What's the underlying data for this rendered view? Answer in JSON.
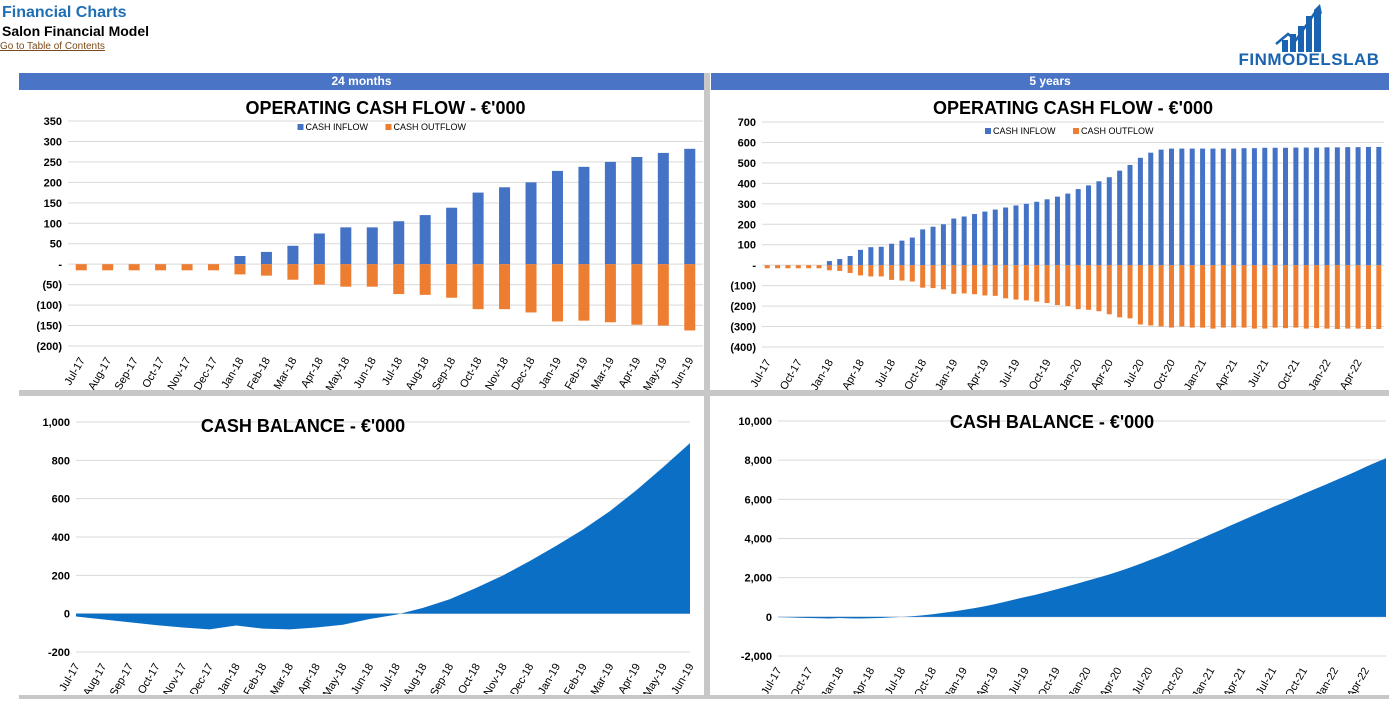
{
  "header": {
    "title": "Financial Charts",
    "subtitle": "Salon Financial Model",
    "link": "Go to Table of Contents"
  },
  "logo": {
    "text": "FINMODELSLAB",
    "icon": "bar-chart-arrow-icon",
    "color": "#1a63b0"
  },
  "sections": {
    "left": "24 months",
    "right": "5 years"
  },
  "colors": {
    "band": "#4a74c6",
    "inflow": "#4472c4",
    "outflow": "#ed7d31",
    "area": "#0b6fc6",
    "grid": "#d9d9d9",
    "separator": "#c7c7c7"
  },
  "chart_data": [
    {
      "id": "ocf24",
      "type": "bar",
      "title": "OPERATING CASH FLOW - €'000",
      "categories": [
        "Jul-17",
        "Aug-17",
        "Sep-17",
        "Oct-17",
        "Nov-17",
        "Dec-17",
        "Jan-18",
        "Feb-18",
        "Mar-18",
        "Apr-18",
        "May-18",
        "Jun-18",
        "Jul-18",
        "Aug-18",
        "Sep-18",
        "Oct-18",
        "Nov-18",
        "Dec-18",
        "Jan-19",
        "Feb-19",
        "Mar-19",
        "Apr-19",
        "May-19",
        "Jun-19"
      ],
      "series": [
        {
          "name": "CASH INFLOW",
          "values": [
            0,
            0,
            0,
            0,
            0,
            0,
            20,
            30,
            45,
            75,
            90,
            90,
            105,
            120,
            138,
            175,
            188,
            200,
            228,
            238,
            250,
            262,
            272,
            282
          ]
        },
        {
          "name": "CASH OUTFLOW",
          "values": [
            -15,
            -15,
            -15,
            -15,
            -15,
            -15,
            -25,
            -28,
            -38,
            -50,
            -55,
            -55,
            -73,
            -75,
            -82,
            -110,
            -110,
            -118,
            -140,
            -138,
            -142,
            -148,
            -150,
            -162
          ]
        }
      ],
      "ylim": [
        -200,
        350
      ],
      "yticks": [
        -200,
        -150,
        -100,
        -50,
        0,
        50,
        100,
        150,
        200,
        250,
        300,
        350
      ],
      "ytick_labels": [
        "(200)",
        "(150)",
        "(100)",
        "(50)",
        "-",
        "50",
        "100",
        "150",
        "200",
        "250",
        "300",
        "350"
      ],
      "legend": "top-center",
      "grid": true
    },
    {
      "id": "ocf60",
      "type": "bar",
      "title": "OPERATING CASH FLOW - €'000",
      "categories": [
        "Jul-17",
        "Aug-17",
        "Sep-17",
        "Oct-17",
        "Nov-17",
        "Dec-17",
        "Jan-18",
        "Feb-18",
        "Mar-18",
        "Apr-18",
        "May-18",
        "Jun-18",
        "Jul-18",
        "Aug-18",
        "Sep-18",
        "Oct-18",
        "Nov-18",
        "Dec-18",
        "Jan-19",
        "Feb-19",
        "Mar-19",
        "Apr-19",
        "May-19",
        "Jun-19",
        "Jul-19",
        "Aug-19",
        "Sep-19",
        "Oct-19",
        "Nov-19",
        "Dec-19",
        "Jan-20",
        "Feb-20",
        "Mar-20",
        "Apr-20",
        "May-20",
        "Jun-20",
        "Jul-20",
        "Aug-20",
        "Sep-20",
        "Oct-20",
        "Nov-20",
        "Dec-20",
        "Jan-21",
        "Feb-21",
        "Mar-21",
        "Apr-21",
        "May-21",
        "Jun-21",
        "Jul-21",
        "Aug-21",
        "Sep-21",
        "Oct-21",
        "Nov-21",
        "Dec-21",
        "Jan-22",
        "Feb-22",
        "Mar-22",
        "Apr-22",
        "May-22",
        "Jun-22"
      ],
      "tick_labels": [
        "Jul-17",
        "",
        "",
        "Oct-17",
        "",
        "",
        "Jan-18",
        "",
        "",
        "Apr-18",
        "",
        "",
        "Jul-18",
        "",
        "",
        "Oct-18",
        "",
        "",
        "Jan-19",
        "",
        "",
        "Apr-19",
        "",
        "",
        "Jul-19",
        "",
        "",
        "Oct-19",
        "",
        "",
        "Jan-20",
        "",
        "",
        "Apr-20",
        "",
        "",
        "Jul-20",
        "",
        "",
        "Oct-20",
        "",
        "",
        "Jan-21",
        "",
        "",
        "Apr-21",
        "",
        "",
        "Jul-21",
        "",
        "",
        "Oct-21",
        "",
        "",
        "Jan-22",
        "",
        "",
        "Apr-22",
        "",
        ""
      ],
      "series": [
        {
          "name": "CASH INFLOW",
          "values": [
            0,
            0,
            0,
            0,
            0,
            0,
            20,
            30,
            45,
            75,
            88,
            90,
            105,
            120,
            135,
            175,
            188,
            200,
            228,
            238,
            250,
            262,
            272,
            282,
            292,
            300,
            310,
            322,
            335,
            350,
            372,
            390,
            410,
            430,
            462,
            490,
            525,
            550,
            565,
            570,
            570,
            570,
            570,
            570,
            570,
            570,
            572,
            572,
            574,
            574,
            574,
            575,
            575,
            575,
            576,
            576,
            577,
            577,
            578,
            578
          ]
        },
        {
          "name": "CASH OUTFLOW",
          "values": [
            -15,
            -15,
            -15,
            -15,
            -15,
            -15,
            -25,
            -28,
            -38,
            -50,
            -55,
            -55,
            -72,
            -75,
            -80,
            -110,
            -112,
            -118,
            -140,
            -138,
            -142,
            -148,
            -150,
            -162,
            -168,
            -172,
            -178,
            -185,
            -195,
            -200,
            -215,
            -218,
            -225,
            -240,
            -255,
            -260,
            -290,
            -295,
            -300,
            -305,
            -300,
            -305,
            -305,
            -310,
            -305,
            -305,
            -305,
            -310,
            -310,
            -305,
            -308,
            -305,
            -310,
            -308,
            -310,
            -312,
            -310,
            -310,
            -312,
            -312
          ]
        }
      ],
      "ylim": [
        -400,
        700
      ],
      "yticks": [
        -400,
        -300,
        -200,
        -100,
        0,
        100,
        200,
        300,
        400,
        500,
        600,
        700
      ],
      "ytick_labels": [
        "(400)",
        "(300)",
        "(200)",
        "(100)",
        "-",
        "100",
        "200",
        "300",
        "400",
        "500",
        "600",
        "700"
      ],
      "legend": "top-center",
      "grid": true
    },
    {
      "id": "cb24",
      "type": "area",
      "title": "CASH BALANCE - €'000",
      "categories": [
        "Jul-17",
        "Aug-17",
        "Sep-17",
        "Oct-17",
        "Nov-17",
        "Dec-17",
        "Jan-18",
        "Feb-18",
        "Mar-18",
        "Apr-18",
        "May-18",
        "Jun-18",
        "Jul-18",
        "Aug-18",
        "Sep-18",
        "Oct-18",
        "Nov-18",
        "Dec-18",
        "Jan-19",
        "Feb-19",
        "Mar-19",
        "Apr-19",
        "May-19",
        "Jun-19"
      ],
      "values": [
        -15,
        -30,
        -45,
        -60,
        -72,
        -82,
        -62,
        -78,
        -82,
        -72,
        -58,
        -28,
        -5,
        30,
        75,
        135,
        200,
        275,
        355,
        440,
        535,
        645,
        765,
        890
      ],
      "ylim": [
        -200,
        1000
      ],
      "yticks": [
        -200,
        0,
        200,
        400,
        600,
        800,
        1000
      ],
      "ytick_labels": [
        "-200",
        "0",
        "200",
        "400",
        "600",
        "800",
        "1,000"
      ],
      "grid": true
    },
    {
      "id": "cb60",
      "type": "area",
      "title": "CASH BALANCE - €'000",
      "categories": [
        "Jul-17",
        "Aug-17",
        "Sep-17",
        "Oct-17",
        "Nov-17",
        "Dec-17",
        "Jan-18",
        "Feb-18",
        "Mar-18",
        "Apr-18",
        "May-18",
        "Jun-18",
        "Jul-18",
        "Aug-18",
        "Sep-18",
        "Oct-18",
        "Nov-18",
        "Dec-18",
        "Jan-19",
        "Feb-19",
        "Mar-19",
        "Apr-19",
        "May-19",
        "Jun-19",
        "Jul-19",
        "Aug-19",
        "Sep-19",
        "Oct-19",
        "Nov-19",
        "Dec-19",
        "Jan-20",
        "Feb-20",
        "Mar-20",
        "Apr-20",
        "May-20",
        "Jun-20",
        "Jul-20",
        "Aug-20",
        "Sep-20",
        "Oct-20",
        "Nov-20",
        "Dec-20",
        "Jan-21",
        "Feb-21",
        "Mar-21",
        "Apr-21",
        "May-21",
        "Jun-21",
        "Jul-21",
        "Aug-21",
        "Sep-21",
        "Oct-21",
        "Nov-21",
        "Dec-21",
        "Jan-22",
        "Feb-22",
        "Mar-22",
        "Apr-22",
        "May-22",
        "Jun-22"
      ],
      "tick_labels": [
        "Jul-17",
        "",
        "",
        "Oct-17",
        "",
        "",
        "Jan-18",
        "",
        "",
        "Apr-18",
        "",
        "",
        "Jul-18",
        "",
        "",
        "Oct-18",
        "",
        "",
        "Jan-19",
        "",
        "",
        "Apr-19",
        "",
        "",
        "Jul-19",
        "",
        "",
        "Oct-19",
        "",
        "",
        "Jan-20",
        "",
        "",
        "Apr-20",
        "",
        "",
        "Jul-20",
        "",
        "",
        "Oct-20",
        "",
        "",
        "Jan-21",
        "",
        "",
        "Apr-21",
        "",
        "",
        "Jul-21",
        "",
        "",
        "Oct-21",
        "",
        "",
        "Jan-22",
        "",
        "",
        "Apr-22",
        "",
        ""
      ],
      "values": [
        -15,
        -30,
        -45,
        -60,
        -72,
        -82,
        -62,
        -78,
        -82,
        -72,
        -58,
        -28,
        -5,
        30,
        75,
        135,
        200,
        275,
        355,
        440,
        535,
        645,
        765,
        890,
        1010,
        1130,
        1260,
        1400,
        1540,
        1690,
        1840,
        1990,
        2140,
        2310,
        2490,
        2680,
        2880,
        3080,
        3300,
        3530,
        3760,
        3990,
        4220,
        4450,
        4680,
        4910,
        5140,
        5370,
        5600,
        5820,
        6050,
        6280,
        6500,
        6720,
        6950,
        7170,
        7400,
        7650,
        7880,
        8100
      ],
      "ylim": [
        -2000,
        10000
      ],
      "yticks": [
        -2000,
        0,
        2000,
        4000,
        6000,
        8000,
        10000
      ],
      "ytick_labels": [
        "-2,000",
        "0",
        "2,000",
        "4,000",
        "6,000",
        "8,000",
        "10,000"
      ],
      "grid": true
    }
  ]
}
